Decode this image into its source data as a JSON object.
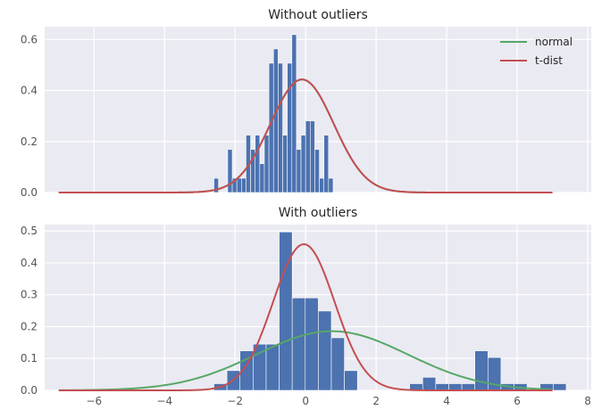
{
  "colors": {
    "background": "#EAEAF2",
    "grid": "#FFFFFF",
    "hist": "#4C72B0",
    "normal": "#55A868",
    "tdist": "#C44E52"
  },
  "chart_data": [
    {
      "type": "bar",
      "title": "Without outliers",
      "xlabel": "",
      "ylabel": "",
      "xlim": [
        -7.4,
        8.1
      ],
      "ylim": [
        0,
        0.65
      ],
      "grid": true,
      "x_ticks": [
        -6,
        -4,
        -2,
        0,
        2,
        4,
        6,
        8
      ],
      "x_tick_labels": [],
      "y_ticks": [
        0.0,
        0.2,
        0.4,
        0.6
      ],
      "y_tick_labels": [
        "0.0",
        "0.2",
        "0.4",
        "0.6"
      ],
      "legend": {
        "placement": "top-right",
        "entries": [
          "normal",
          "t-dist"
        ]
      },
      "histogram": {
        "bin_width": 0.13,
        "bins": [
          {
            "x0": -2.6,
            "h": 0.056
          },
          {
            "x0": -2.47,
            "h": 0.0
          },
          {
            "x0": -2.34,
            "h": 0.0
          },
          {
            "x0": -2.21,
            "h": 0.169
          },
          {
            "x0": -2.08,
            "h": 0.056
          },
          {
            "x0": -1.95,
            "h": 0.056
          },
          {
            "x0": -1.82,
            "h": 0.056
          },
          {
            "x0": -1.69,
            "h": 0.225
          },
          {
            "x0": -1.56,
            "h": 0.169
          },
          {
            "x0": -1.43,
            "h": 0.225
          },
          {
            "x0": -1.3,
            "h": 0.113
          },
          {
            "x0": -1.17,
            "h": 0.225
          },
          {
            "x0": -1.04,
            "h": 0.507
          },
          {
            "x0": -0.91,
            "h": 0.563
          },
          {
            "x0": -0.78,
            "h": 0.507
          },
          {
            "x0": -0.65,
            "h": 0.225
          },
          {
            "x0": -0.52,
            "h": 0.507
          },
          {
            "x0": -0.39,
            "h": 0.619
          },
          {
            "x0": -0.26,
            "h": 0.169
          },
          {
            "x0": -0.13,
            "h": 0.225
          },
          {
            "x0": 0.0,
            "h": 0.281
          },
          {
            "x0": 0.13,
            "h": 0.281
          },
          {
            "x0": 0.26,
            "h": 0.169
          },
          {
            "x0": 0.39,
            "h": 0.056
          },
          {
            "x0": 0.52,
            "h": 0.225
          },
          {
            "x0": 0.65,
            "h": 0.056
          }
        ]
      },
      "series": [
        {
          "name": "normal",
          "kind": "gaussian",
          "mean": -0.1,
          "sd": 0.9,
          "x_range": [
            -7.0,
            7.0
          ]
        },
        {
          "name": "t-dist",
          "kind": "gaussian",
          "mean": -0.1,
          "sd": 0.9,
          "x_range": [
            -7.0,
            7.0
          ]
        }
      ]
    },
    {
      "type": "bar",
      "title": "With outliers",
      "xlabel": "",
      "ylabel": "",
      "xlim": [
        -7.4,
        8.1
      ],
      "ylim": [
        0,
        0.52
      ],
      "grid": true,
      "x_ticks": [
        -6,
        -4,
        -2,
        0,
        2,
        4,
        6,
        8
      ],
      "x_tick_labels": [
        "−6",
        "−4",
        "−2",
        "0",
        "2",
        "4",
        "6",
        "8"
      ],
      "y_ticks": [
        0.0,
        0.1,
        0.2,
        0.3,
        0.4,
        0.5
      ],
      "y_tick_labels": [
        "0.0",
        "0.1",
        "0.2",
        "0.3",
        "0.4",
        "0.5"
      ],
      "histogram": {
        "bin_width": 0.37,
        "bins": [
          {
            "x0": -2.6,
            "h": 0.021
          },
          {
            "x0": -2.23,
            "h": 0.062
          },
          {
            "x0": -1.86,
            "h": 0.124
          },
          {
            "x0": -1.49,
            "h": 0.145
          },
          {
            "x0": -1.12,
            "h": 0.145
          },
          {
            "x0": -0.75,
            "h": 0.497
          },
          {
            "x0": -0.38,
            "h": 0.29
          },
          {
            "x0": -0.01,
            "h": 0.29
          },
          {
            "x0": 0.36,
            "h": 0.249
          },
          {
            "x0": 0.73,
            "h": 0.165
          },
          {
            "x0": 1.1,
            "h": 0.062
          },
          {
            "x0": 1.47,
            "h": 0.0
          },
          {
            "x0": 1.84,
            "h": 0.0
          },
          {
            "x0": 2.21,
            "h": 0.0
          },
          {
            "x0": 2.58,
            "h": 0.0
          },
          {
            "x0": 2.95,
            "h": 0.021
          },
          {
            "x0": 3.32,
            "h": 0.041
          },
          {
            "x0": 3.69,
            "h": 0.021
          },
          {
            "x0": 4.06,
            "h": 0.021
          },
          {
            "x0": 4.43,
            "h": 0.021
          },
          {
            "x0": 4.8,
            "h": 0.124
          },
          {
            "x0": 5.17,
            "h": 0.103
          },
          {
            "x0": 5.54,
            "h": 0.021
          },
          {
            "x0": 5.91,
            "h": 0.021
          },
          {
            "x0": 6.28,
            "h": 0.0
          },
          {
            "x0": 6.65,
            "h": 0.021
          },
          {
            "x0": 7.02,
            "h": 0.021
          }
        ]
      },
      "series": [
        {
          "name": "normal",
          "kind": "gaussian",
          "mean": 0.75,
          "sd": 2.15,
          "x_range": [
            -7.0,
            7.0
          ]
        },
        {
          "name": "t-dist",
          "kind": "gaussian",
          "mean": -0.05,
          "sd": 0.87,
          "x_range": [
            -7.0,
            7.0
          ]
        }
      ]
    }
  ]
}
